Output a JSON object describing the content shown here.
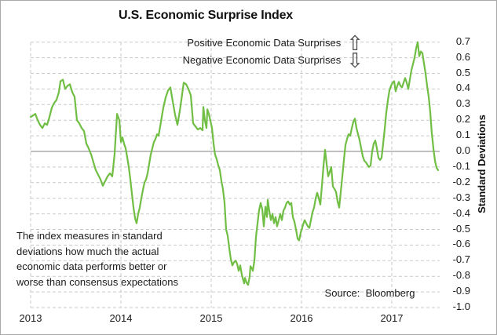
{
  "window": {
    "background": "#ffffff",
    "border_color": "#a9a9a9"
  },
  "title": "U.S. Economic Surprise Index",
  "annotations": {
    "positive": "Positive Economic Data Surprises",
    "negative": "Negative Economic Data Surprises",
    "up_arrow_glyph": "⇧",
    "down_arrow_glyph": "⇩",
    "note": "The index measures in standard\ndeviations how much the actual\neconomic data performs better or\nworse than consensus expectations",
    "source": "Source:  Bloomberg"
  },
  "chart_data": {
    "type": "line",
    "title": "U.S. Economic Surprise Index",
    "xlabel": "",
    "ylabel": "Standard Deviations",
    "ylim": [
      -1.0,
      0.7
    ],
    "ytick_step": 0.1,
    "ytick_labels": [
      "0.7",
      "0.6",
      "0.5",
      "0.4",
      "0.3",
      "0.2",
      "0.1",
      "0.0",
      "-0.1",
      "-0.2",
      "-0.3",
      "-0.4",
      "-0.5",
      "-0.6",
      "-0.7",
      "-0.8",
      "-0.9",
      "-1.0"
    ],
    "x_categories": [
      "2013",
      "2014",
      "2015",
      "2016",
      "2017"
    ],
    "x_range_years": [
      2013.0,
      2017.53
    ],
    "grid": "dashed",
    "legend": "none",
    "line_color": "#70be44",
    "grid_color": "#c9c9c9",
    "zero_line_color": "#808080",
    "text_color": "#1a1a1a",
    "series": [
      {
        "name": "U.S. Economic Surprise Index (standard deviations)",
        "points": [
          [
            0.0,
            0.22
          ],
          [
            0.026,
            0.23
          ],
          [
            0.052,
            0.24
          ],
          [
            0.078,
            0.2
          ],
          [
            0.104,
            0.17
          ],
          [
            0.13,
            0.15
          ],
          [
            0.157,
            0.18
          ],
          [
            0.183,
            0.17
          ],
          [
            0.209,
            0.22
          ],
          [
            0.235,
            0.28
          ],
          [
            0.261,
            0.31
          ],
          [
            0.287,
            0.33
          ],
          [
            0.313,
            0.38
          ],
          [
            0.33,
            0.45
          ],
          [
            0.357,
            0.46
          ],
          [
            0.383,
            0.4
          ],
          [
            0.409,
            0.42
          ],
          [
            0.435,
            0.43
          ],
          [
            0.461,
            0.38
          ],
          [
            0.487,
            0.35
          ],
          [
            0.513,
            0.2
          ],
          [
            0.539,
            0.18
          ],
          [
            0.565,
            0.15
          ],
          [
            0.591,
            0.13
          ],
          [
            0.617,
            0.05
          ],
          [
            0.643,
            0.02
          ],
          [
            0.67,
            -0.02
          ],
          [
            0.696,
            -0.07
          ],
          [
            0.722,
            -0.12
          ],
          [
            0.748,
            -0.15
          ],
          [
            0.774,
            -0.18
          ],
          [
            0.8,
            -0.22
          ],
          [
            0.826,
            -0.19
          ],
          [
            0.852,
            -0.16
          ],
          [
            0.878,
            -0.14
          ],
          [
            0.904,
            -0.16
          ],
          [
            0.93,
            -0.02
          ],
          [
            0.957,
            0.24
          ],
          [
            0.983,
            0.2
          ],
          [
            1.0,
            0.06
          ],
          [
            1.017,
            0.09
          ],
          [
            1.035,
            0.05
          ],
          [
            1.052,
            0.02
          ],
          [
            1.07,
            -0.04
          ],
          [
            1.087,
            -0.1
          ],
          [
            1.104,
            -0.18
          ],
          [
            1.122,
            -0.27
          ],
          [
            1.139,
            -0.36
          ],
          [
            1.157,
            -0.43
          ],
          [
            1.174,
            -0.46
          ],
          [
            1.191,
            -0.4
          ],
          [
            1.209,
            -0.36
          ],
          [
            1.226,
            -0.3
          ],
          [
            1.243,
            -0.25
          ],
          [
            1.261,
            -0.2
          ],
          [
            1.278,
            -0.18
          ],
          [
            1.296,
            -0.14
          ],
          [
            1.313,
            -0.08
          ],
          [
            1.33,
            -0.02
          ],
          [
            1.348,
            0.02
          ],
          [
            1.365,
            0.06
          ],
          [
            1.383,
            0.08
          ],
          [
            1.4,
            0.11
          ],
          [
            1.417,
            0.1
          ],
          [
            1.435,
            0.16
          ],
          [
            1.452,
            0.22
          ],
          [
            1.47,
            0.28
          ],
          [
            1.496,
            0.345
          ],
          [
            1.522,
            0.39
          ],
          [
            1.548,
            0.41
          ],
          [
            1.574,
            0.32
          ],
          [
            1.6,
            0.235
          ],
          [
            1.626,
            0.17
          ],
          [
            1.652,
            0.26
          ],
          [
            1.67,
            0.33
          ],
          [
            1.696,
            0.44
          ],
          [
            1.722,
            0.43
          ],
          [
            1.748,
            0.4
          ],
          [
            1.774,
            0.36
          ],
          [
            1.8,
            0.18
          ],
          [
            1.826,
            0.16
          ],
          [
            1.852,
            0.14
          ],
          [
            1.878,
            0.15
          ],
          [
            1.904,
            0.135
          ],
          [
            1.913,
            0.285
          ],
          [
            1.93,
            0.2
          ],
          [
            1.948,
            0.15
          ],
          [
            1.957,
            0.27
          ],
          [
            1.974,
            0.24
          ],
          [
            1.991,
            0.195
          ],
          [
            2.009,
            0.15
          ],
          [
            2.026,
            0.05
          ],
          [
            2.043,
            -0.02
          ],
          [
            2.061,
            -0.05
          ],
          [
            2.078,
            -0.09
          ],
          [
            2.096,
            -0.12
          ],
          [
            2.113,
            -0.19
          ],
          [
            2.13,
            -0.24
          ],
          [
            2.148,
            -0.33
          ],
          [
            2.165,
            -0.5
          ],
          [
            2.183,
            -0.54
          ],
          [
            2.2,
            -0.62
          ],
          [
            2.217,
            -0.69
          ],
          [
            2.235,
            -0.73
          ],
          [
            2.252,
            -0.71
          ],
          [
            2.27,
            -0.7
          ],
          [
            2.287,
            -0.72
          ],
          [
            2.304,
            -0.765
          ],
          [
            2.322,
            -0.73
          ],
          [
            2.339,
            -0.79
          ],
          [
            2.357,
            -0.83
          ],
          [
            2.365,
            -0.845
          ],
          [
            2.374,
            -0.81
          ],
          [
            2.391,
            -0.84
          ],
          [
            2.409,
            -0.855
          ],
          [
            2.426,
            -0.8
          ],
          [
            2.435,
            -0.735
          ],
          [
            2.452,
            -0.75
          ],
          [
            2.461,
            -0.765
          ],
          [
            2.478,
            -0.7
          ],
          [
            2.496,
            -0.55
          ],
          [
            2.513,
            -0.46
          ],
          [
            2.53,
            -0.38
          ],
          [
            2.548,
            -0.33
          ],
          [
            2.565,
            -0.37
          ],
          [
            2.583,
            -0.48
          ],
          [
            2.6,
            -0.355
          ],
          [
            2.617,
            -0.42
          ],
          [
            2.626,
            -0.31
          ],
          [
            2.643,
            -0.38
          ],
          [
            2.661,
            -0.44
          ],
          [
            2.678,
            -0.4
          ],
          [
            2.696,
            -0.46
          ],
          [
            2.713,
            -0.42
          ],
          [
            2.73,
            -0.48
          ],
          [
            2.748,
            -0.44
          ],
          [
            2.765,
            -0.4
          ],
          [
            2.783,
            -0.44
          ],
          [
            2.8,
            -0.38
          ],
          [
            2.817,
            -0.36
          ],
          [
            2.835,
            -0.33
          ],
          [
            2.852,
            -0.32
          ],
          [
            2.87,
            -0.34
          ],
          [
            2.887,
            -0.33
          ],
          [
            2.904,
            -0.42
          ],
          [
            2.922,
            -0.45
          ],
          [
            2.939,
            -0.5
          ],
          [
            2.957,
            -0.56
          ],
          [
            2.974,
            -0.57
          ],
          [
            2.991,
            -0.52
          ],
          [
            3.017,
            -0.47
          ],
          [
            3.035,
            -0.44
          ],
          [
            3.052,
            -0.46
          ],
          [
            3.07,
            -0.48
          ],
          [
            3.087,
            -0.49
          ],
          [
            3.104,
            -0.44
          ],
          [
            3.122,
            -0.39
          ],
          [
            3.139,
            -0.36
          ],
          [
            3.157,
            -0.3
          ],
          [
            3.174,
            -0.265
          ],
          [
            3.191,
            -0.3
          ],
          [
            3.209,
            -0.34
          ],
          [
            3.226,
            -0.22
          ],
          [
            3.243,
            -0.1
          ],
          [
            3.261,
            0.01
          ],
          [
            3.278,
            -0.08
          ],
          [
            3.296,
            -0.16
          ],
          [
            3.313,
            -0.13
          ],
          [
            3.33,
            -0.1
          ],
          [
            3.348,
            -0.225
          ],
          [
            3.365,
            -0.24
          ],
          [
            3.383,
            -0.26
          ],
          [
            3.4,
            -0.32
          ],
          [
            3.417,
            -0.36
          ],
          [
            3.435,
            -0.26
          ],
          [
            3.452,
            -0.16
          ],
          [
            3.47,
            -0.05
          ],
          [
            3.487,
            0.04
          ],
          [
            3.504,
            0.08
          ],
          [
            3.522,
            0.11
          ],
          [
            3.539,
            0.1
          ],
          [
            3.557,
            0.15
          ],
          [
            3.574,
            0.19
          ],
          [
            3.591,
            0.21
          ],
          [
            3.609,
            0.15
          ],
          [
            3.626,
            0.11
          ],
          [
            3.643,
            0.075
          ],
          [
            3.661,
            0.02
          ],
          [
            3.678,
            -0.03
          ],
          [
            3.696,
            -0.06
          ],
          [
            3.713,
            -0.07
          ],
          [
            3.73,
            -0.085
          ],
          [
            3.748,
            -0.1
          ],
          [
            3.765,
            -0.09
          ],
          [
            3.783,
            0.0
          ],
          [
            3.8,
            0.05
          ],
          [
            3.817,
            0.07
          ],
          [
            3.835,
            0.02
          ],
          [
            3.852,
            -0.04
          ],
          [
            3.87,
            -0.055
          ],
          [
            3.887,
            -0.04
          ],
          [
            3.904,
            0.05
          ],
          [
            3.922,
            0.145
          ],
          [
            3.939,
            0.25
          ],
          [
            3.957,
            0.33
          ],
          [
            3.974,
            0.39
          ],
          [
            3.991,
            0.42
          ],
          [
            4.009,
            0.44
          ],
          [
            4.026,
            0.45
          ],
          [
            4.043,
            0.385
          ],
          [
            4.061,
            0.42
          ],
          [
            4.078,
            0.445
          ],
          [
            4.096,
            0.42
          ],
          [
            4.113,
            0.41
          ],
          [
            4.13,
            0.44
          ],
          [
            4.148,
            0.47
          ],
          [
            4.165,
            0.44
          ],
          [
            4.183,
            0.4
          ],
          [
            4.2,
            0.46
          ],
          [
            4.217,
            0.52
          ],
          [
            4.235,
            0.56
          ],
          [
            4.252,
            0.6
          ],
          [
            4.27,
            0.66
          ],
          [
            4.287,
            0.7
          ],
          [
            4.304,
            0.61
          ],
          [
            4.322,
            0.64
          ],
          [
            4.339,
            0.63
          ],
          [
            4.357,
            0.56
          ],
          [
            4.374,
            0.5
          ],
          [
            4.391,
            0.42
          ],
          [
            4.409,
            0.35
          ],
          [
            4.426,
            0.25
          ],
          [
            4.443,
            0.12
          ],
          [
            4.461,
            0.02
          ],
          [
            4.478,
            -0.06
          ],
          [
            4.496,
            -0.105
          ],
          [
            4.513,
            -0.12
          ]
        ]
      }
    ]
  }
}
